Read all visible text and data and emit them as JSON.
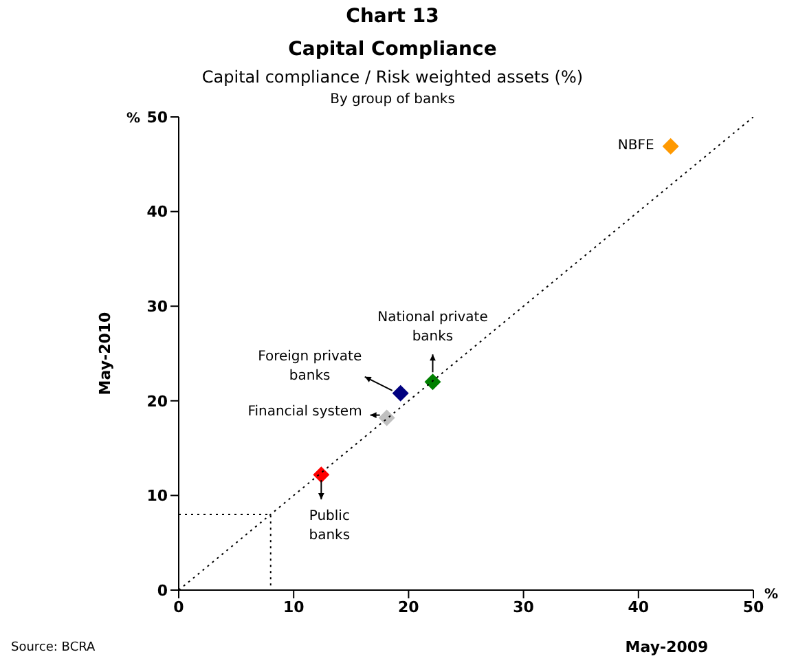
{
  "chart_data": {
    "type": "scatter",
    "title": "Capital Compliance",
    "subtitle": "Capital compliance / Risk weighted assets (%)",
    "xlabel": "May-2009",
    "ylabel": "May-2010",
    "annotations": [
      "Chart 13",
      "By group of banks",
      "%",
      "%",
      "Source: BCRA"
    ],
    "xlim": [
      0,
      50
    ],
    "ylim": [
      0,
      50
    ],
    "xticks": [
      0,
      10,
      20,
      30,
      40,
      50
    ],
    "yticks": [
      0,
      10,
      20,
      30,
      40,
      50
    ],
    "grid": false,
    "marker": "diamond",
    "series": [
      {
        "name": "Public banks",
        "color": "#ff0000",
        "x": [
          12.4
        ],
        "values": [
          12.2
        ]
      },
      {
        "name": "Financial system",
        "color": "#c0c0c0",
        "x": [
          18.1
        ],
        "values": [
          18.2
        ]
      },
      {
        "name": "Foreign private banks",
        "color": "#000080",
        "x": [
          19.3
        ],
        "values": [
          20.8
        ]
      },
      {
        "name": "National private banks",
        "color": "#008000",
        "x": [
          22.1
        ],
        "values": [
          22.0
        ]
      },
      {
        "name": "NBFE",
        "color": "#ff9900",
        "x": [
          42.8
        ],
        "values": [
          46.9
        ]
      },
      {
        "type": "line",
        "color": "#000000",
        "line_style": "dotted",
        "marker": "none",
        "x": [
          0,
          50
        ],
        "values": [
          0,
          50
        ]
      },
      {
        "type": "line",
        "color": "#000000",
        "line_style": "dotted",
        "marker": "none",
        "x": [
          0,
          8,
          8
        ],
        "values": [
          8,
          8,
          0
        ]
      }
    ]
  }
}
